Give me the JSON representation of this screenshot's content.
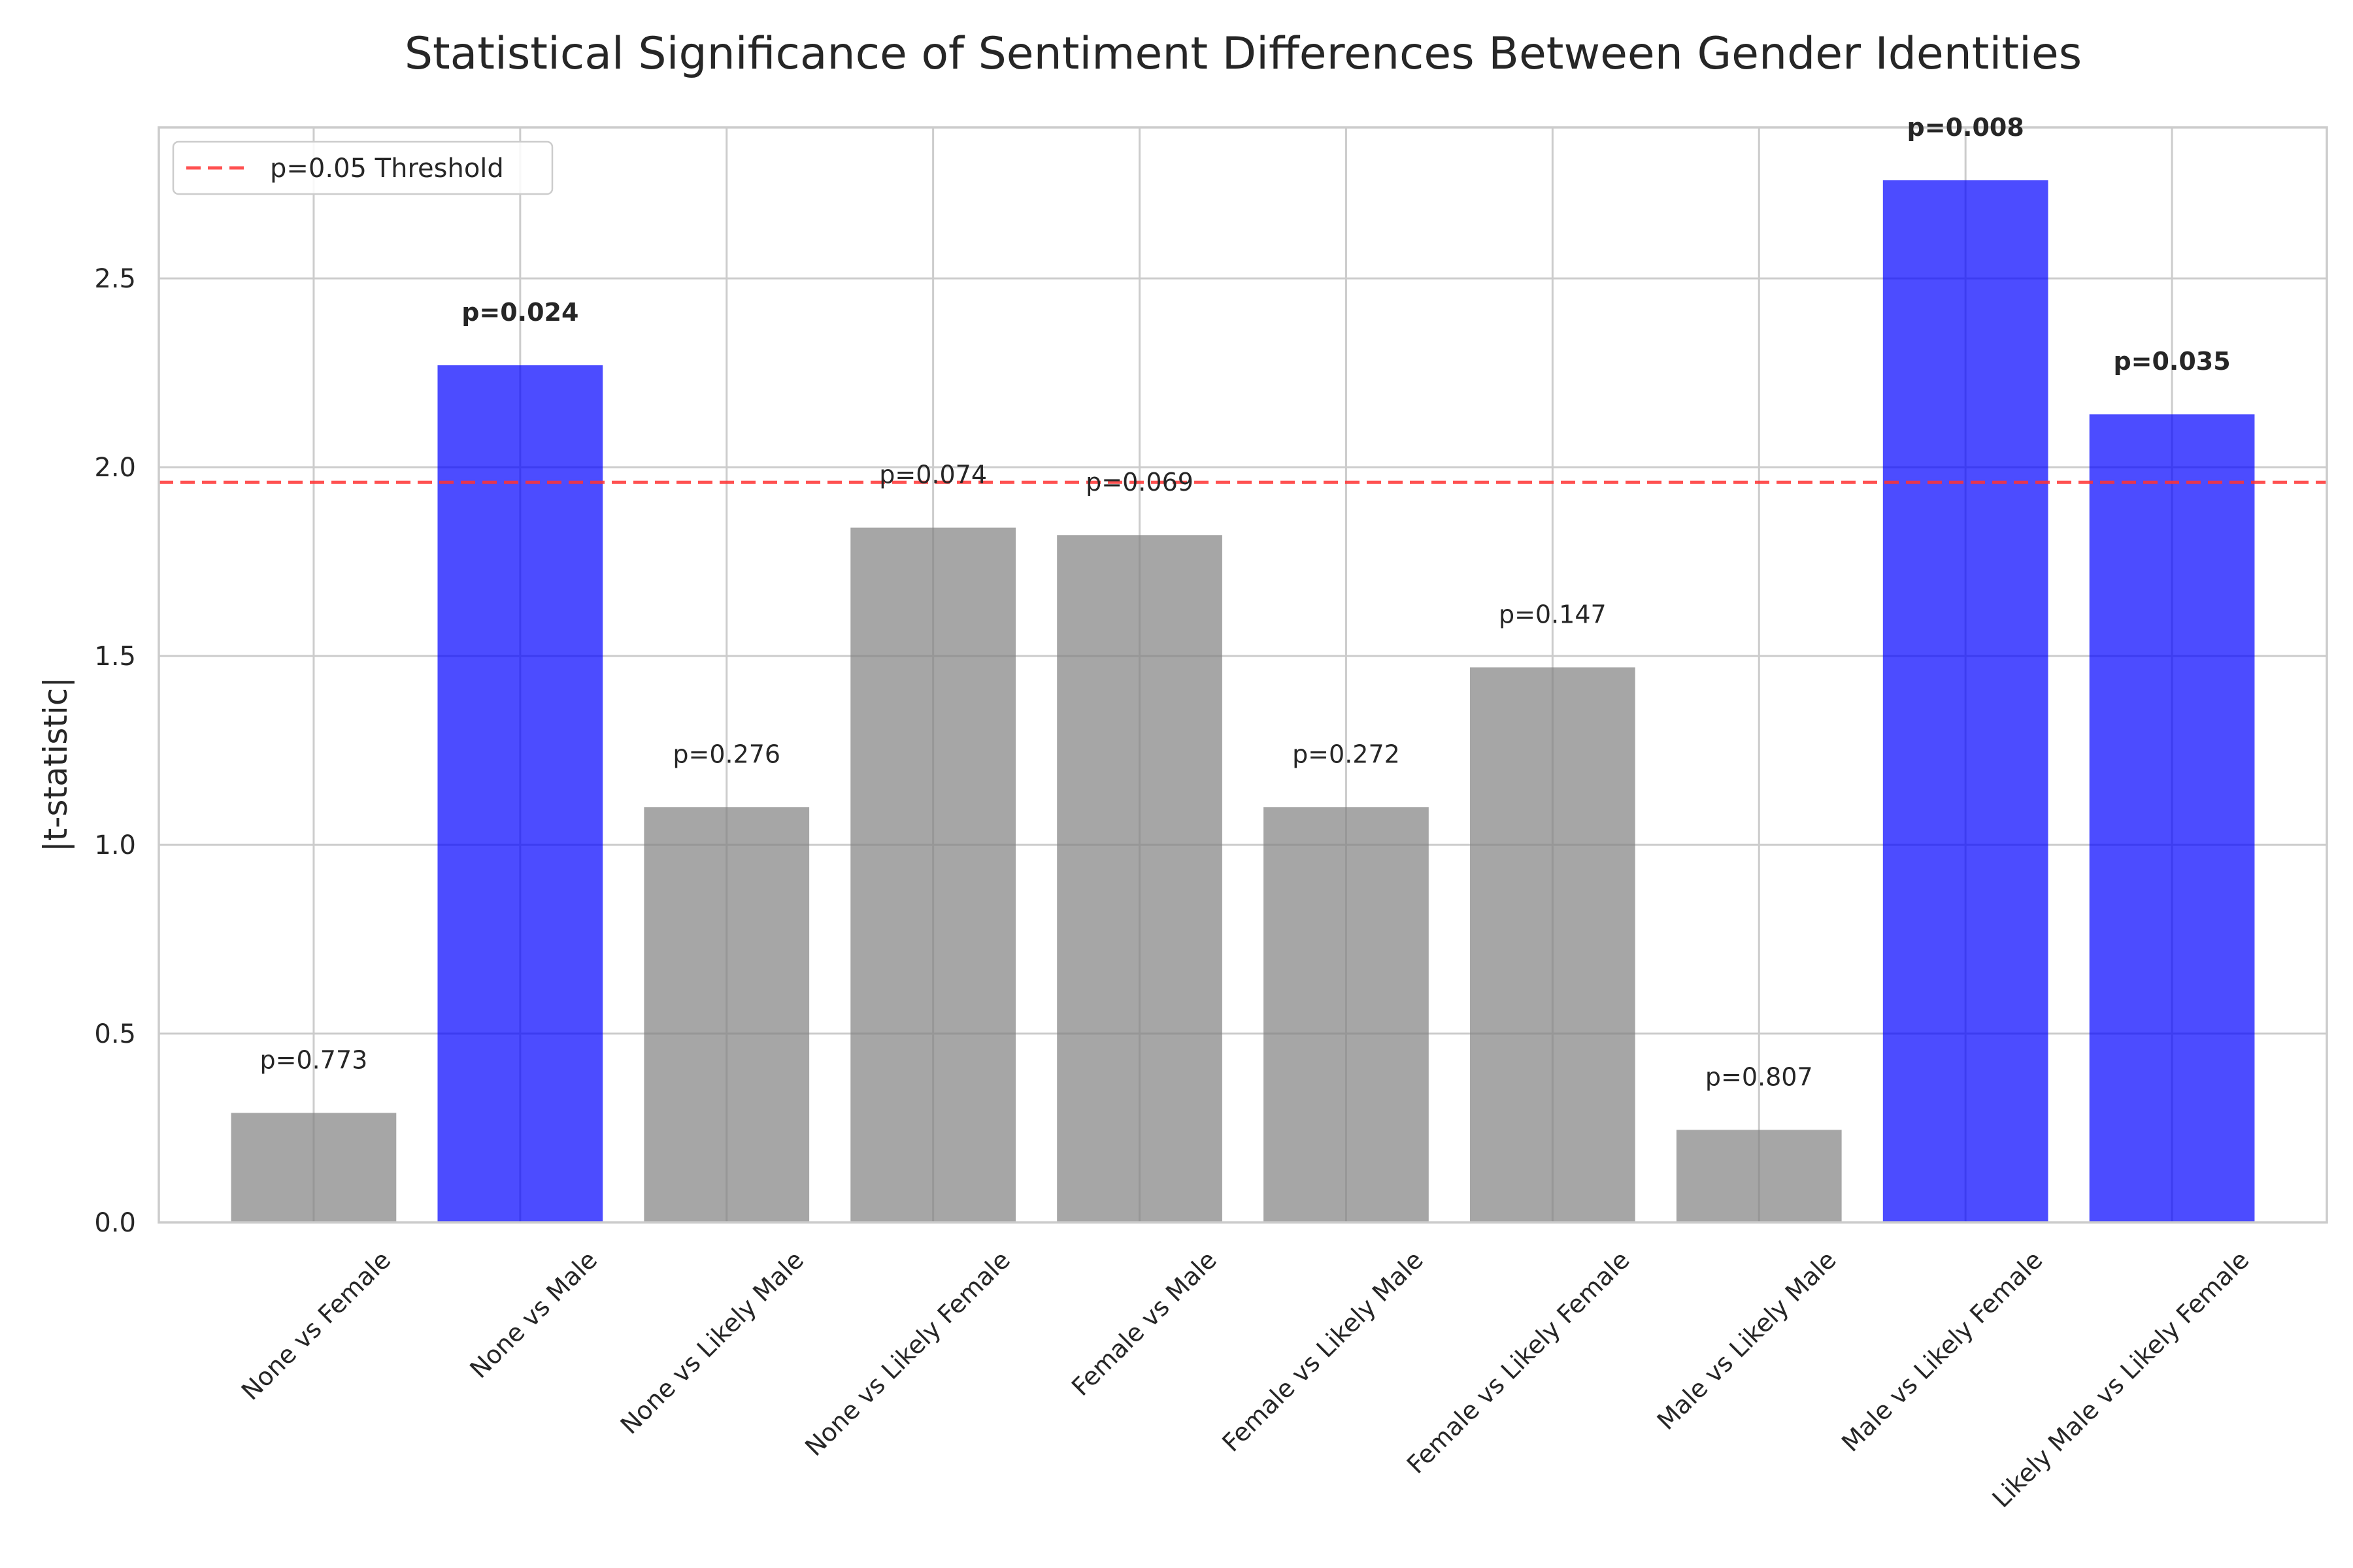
{
  "chart_data": {
    "type": "bar",
    "title": "Statistical Significance of Sentiment Differences Between Gender Identities",
    "xlabel": "",
    "ylabel": "|t-statistic|",
    "ylim": [
      0,
      2.9
    ],
    "yticks": [
      "0.0",
      "0.5",
      "1.0",
      "1.5",
      "2.0",
      "2.5"
    ],
    "grid": true,
    "legend": {
      "placement": "top-left",
      "entries": [
        "p=0.05 Threshold"
      ]
    },
    "threshold": {
      "value": 1.96,
      "label": "p=0.05 Threshold",
      "color": "#ff3333"
    },
    "colors": {
      "significant": "#0000ff",
      "not_significant": "#808080"
    },
    "categories": [
      "None vs Female",
      "None vs Male",
      "None vs Likely Male",
      "None vs Likely Female",
      "Female vs Male",
      "Female vs Likely Male",
      "Female vs Likely Female",
      "Male vs Likely Male",
      "Male vs Likely Female",
      "Likely Male vs Likely Female"
    ],
    "values": [
      0.29,
      2.27,
      1.1,
      1.84,
      1.82,
      1.1,
      1.47,
      0.245,
      2.76,
      2.14
    ],
    "p_labels": [
      "p=0.773",
      "p=0.024",
      "p=0.276",
      "p=0.074",
      "p=0.069",
      "p=0.272",
      "p=0.147",
      "p=0.807",
      "p=0.008",
      "p=0.035"
    ],
    "significant": [
      false,
      true,
      false,
      false,
      false,
      false,
      false,
      false,
      true,
      true
    ]
  }
}
